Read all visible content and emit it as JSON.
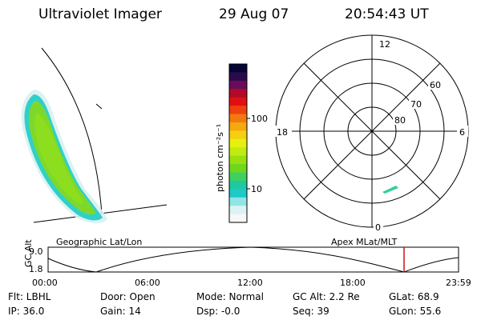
{
  "header": {
    "title": "Ultraviolet Imager",
    "date": "29 Aug 07",
    "time": "20:54:43 UT"
  },
  "colorbar": {
    "label": "photon cm⁻²s⁻¹",
    "ticks": [
      "100",
      "10"
    ],
    "colors": [
      "#050535",
      "#2a0a4a",
      "#6a0a5a",
      "#b00a2a",
      "#e01010",
      "#f04010",
      "#f07a10",
      "#f5a810",
      "#f5d010",
      "#e6f010",
      "#c0ec10",
      "#98e010",
      "#70d81c",
      "#40d060",
      "#20c8a0",
      "#20c8c8",
      "#90e6e6",
      "#dcf3f3",
      "#f7f7f7"
    ]
  },
  "polar": {
    "mlt_labels": [
      "12",
      "18",
      "6",
      "0"
    ],
    "lat_labels": [
      "60",
      "70",
      "80"
    ]
  },
  "timeline": {
    "left_label": "Geographic Lat/Lon",
    "right_label": "Apex  MLat/MLT",
    "axis_title": "GC Alt",
    "y_ticks": [
      "9.0",
      "1.8"
    ],
    "x_ticks": [
      "00:00",
      "06:00",
      "12:00",
      "18:00",
      "23:59"
    ],
    "marker_color": "#d01010"
  },
  "info": {
    "flt": "Flt: LBHL",
    "ip": "IP: 36.0",
    "door": "Door: Open",
    "gain": "Gain: 14",
    "mode": "Mode: Normal",
    "dsp": "Dsp:   -0.0",
    "gcalt": "GC Alt: 2.2 Re",
    "seq": "Seq: 39",
    "glat": "GLat:  68.9",
    "glon": "GLon:  55.6"
  }
}
